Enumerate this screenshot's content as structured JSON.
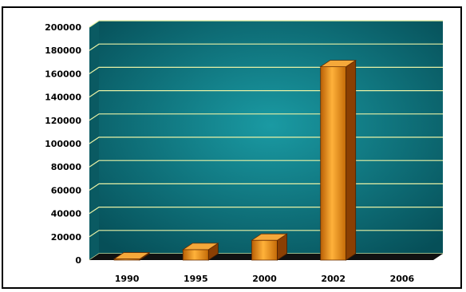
{
  "chart_data": {
    "type": "bar",
    "style": "3d-column",
    "title": "",
    "xlabel": "",
    "ylabel": "",
    "categories": [
      "1990",
      "1995",
      "2000",
      "2002",
      "2006"
    ],
    "values": [
      1000,
      9000,
      17000,
      166000,
      0
    ],
    "ylim": [
      0,
      200000
    ],
    "yticks": [
      "200000",
      "180000",
      "160000",
      "140000",
      "120000",
      "100000",
      "80000",
      "60000",
      "40000",
      "20000",
      "0"
    ],
    "grid": true,
    "legend": "none",
    "colors": {
      "plot_background": "#0b6e78",
      "gridline": "#e9f2a6",
      "bar_front": "#e08a10",
      "bar_top": "#f5a83a",
      "bar_side": "#8a3f03",
      "floor": "#111111"
    }
  }
}
